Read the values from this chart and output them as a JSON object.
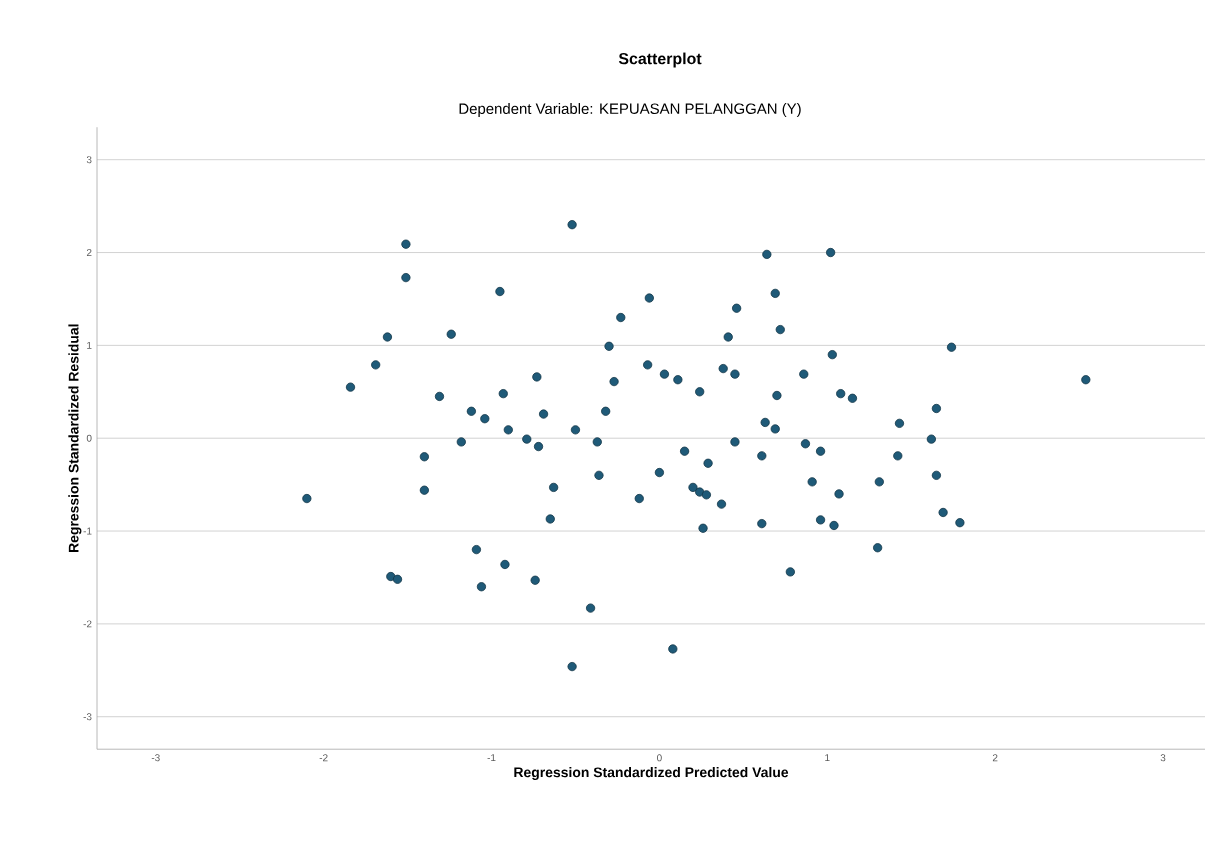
{
  "chart_data": {
    "type": "scatter",
    "title": "Scatterplot",
    "subtitle": "Dependent Variable: KEPUASAN PELANGGAN (Y)",
    "xlabel": "Regression Standardized Predicted Value",
    "ylabel": "Regression Standardized Residual",
    "xlim": [
      -3.35,
      3.25
    ],
    "ylim": [
      -3.35,
      3.35
    ],
    "xticks": [
      -3,
      -2,
      -1,
      0,
      1,
      2,
      3
    ],
    "yticks": [
      -3,
      -2,
      -1,
      0,
      1,
      2,
      3
    ],
    "grid": "y",
    "marker": "circle",
    "series": [
      {
        "color": "#1f5a78",
        "x": [
          -0.52,
          -1.51,
          -1.51,
          -0.95,
          -0.23,
          -1.62,
          -1.24,
          -0.3,
          -1.69,
          -1.84,
          -1.31,
          -0.93,
          -0.73,
          -0.27,
          -1.12,
          -1.04,
          -0.69,
          -0.32,
          -0.9,
          -0.5,
          -0.79,
          -0.72,
          -1.18,
          -0.37,
          -1.4,
          -1.4,
          -0.36,
          -0.63,
          -0.65,
          -2.1,
          -1.09,
          -0.92,
          -0.74,
          -1.06,
          -1.6,
          -1.56,
          -0.41,
          -0.52,
          -0.12,
          0.64,
          1.02,
          -0.06,
          0.69,
          0.46,
          0.72,
          0.41,
          1.03,
          1.74,
          2.54,
          -0.07,
          0.03,
          0.11,
          0.38,
          0.45,
          0.24,
          0.86,
          0.7,
          1.08,
          1.15,
          0.63,
          0.69,
          1.43,
          1.65,
          0.45,
          0.87,
          0.96,
          1.62,
          0.15,
          0.61,
          1.42,
          0.29,
          0.0,
          1.65,
          0.91,
          1.31,
          0.2,
          0.24,
          0.28,
          1.07,
          0.37,
          1.69,
          1.79,
          0.96,
          1.04,
          0.61,
          0.26,
          1.3,
          0.78,
          0.08
        ],
        "values": [
          2.3,
          2.09,
          1.73,
          1.58,
          1.3,
          1.09,
          1.12,
          0.99,
          0.79,
          0.55,
          0.45,
          0.48,
          0.66,
          0.61,
          0.29,
          0.21,
          0.26,
          0.29,
          0.09,
          0.09,
          -0.01,
          -0.09,
          -0.04,
          -0.04,
          -0.2,
          -0.56,
          -0.4,
          -0.53,
          -0.87,
          -0.65,
          -1.2,
          -1.36,
          -1.53,
          -1.6,
          -1.49,
          -1.52,
          -1.83,
          -2.46,
          -0.65,
          1.98,
          2.0,
          1.51,
          1.56,
          1.4,
          1.17,
          1.09,
          0.9,
          0.98,
          0.63,
          0.79,
          0.69,
          0.63,
          0.75,
          0.69,
          0.5,
          0.69,
          0.46,
          0.48,
          0.43,
          0.17,
          0.1,
          0.16,
          0.32,
          -0.04,
          -0.06,
          -0.14,
          -0.01,
          -0.14,
          -0.19,
          -0.19,
          -0.27,
          -0.37,
          -0.4,
          -0.47,
          -0.47,
          -0.53,
          -0.58,
          -0.61,
          -0.6,
          -0.71,
          -0.8,
          -0.91,
          -0.88,
          -0.94,
          -0.92,
          -0.97,
          -1.18,
          -1.44,
          -2.27
        ]
      }
    ]
  }
}
